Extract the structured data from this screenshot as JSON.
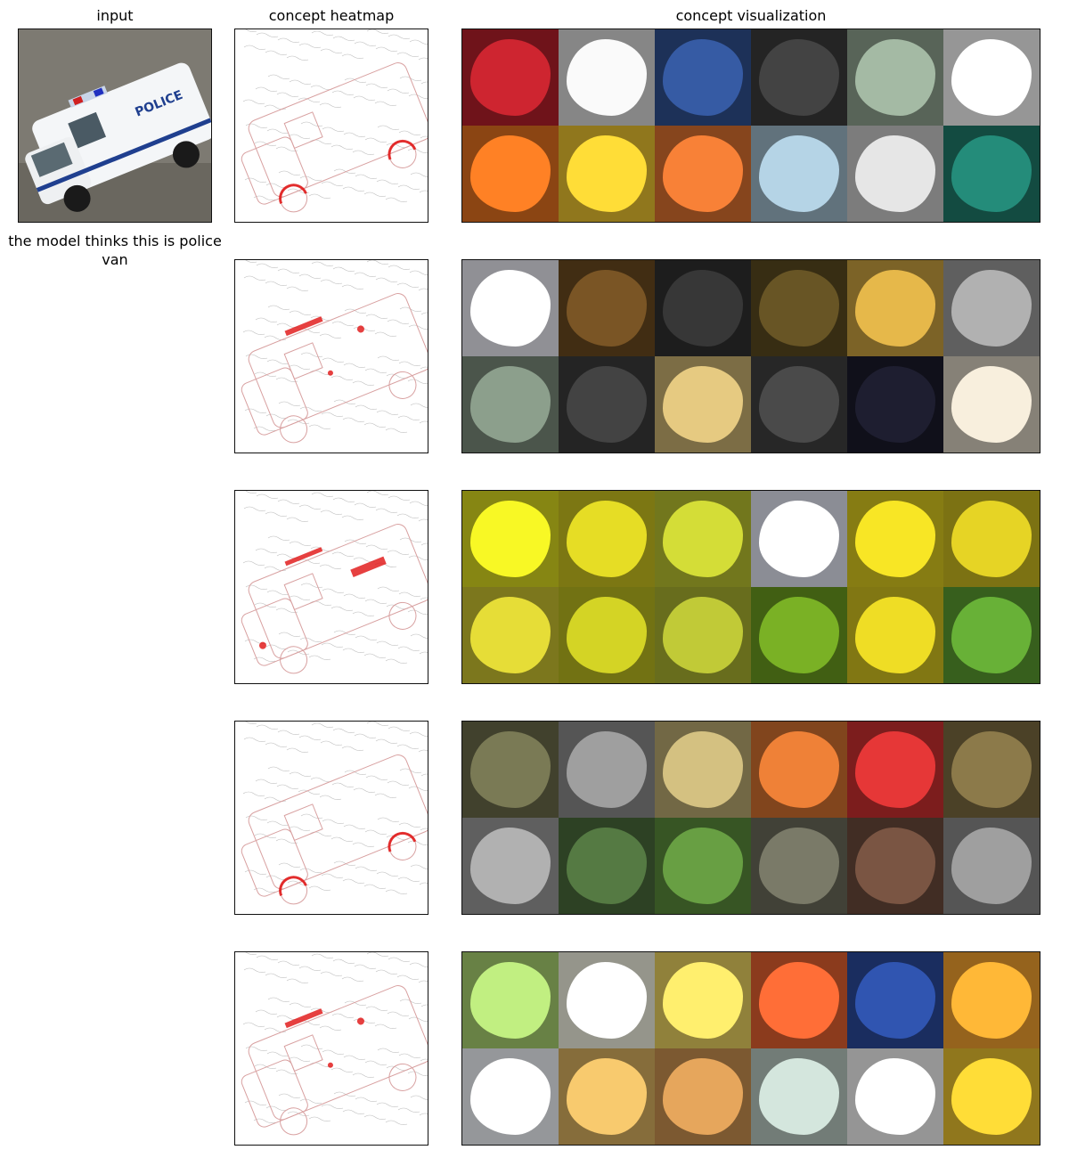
{
  "headers": {
    "input": "input",
    "heatmap": "concept heatmap",
    "visualization": "concept visualization"
  },
  "caption": "the model thinks this is police van",
  "input_image": {
    "text": "POLICE",
    "van_color": "#f4f6f8",
    "stripe_color": "#1f3f8f"
  },
  "rows": [
    {
      "heat_focus": "wheels",
      "tiles": [
        "#b3202a",
        "#d9d9d9",
        "#2f4f8f",
        "#3a3a3a",
        "#8fa28f",
        "#f2f2f2",
        "#e07020",
        "#e8c030",
        "#d87030",
        "#9db8c8",
        "#c8c8c8",
        "#1f7a6a"
      ]
    },
    {
      "heat_focus": "roof-light",
      "tiles": [
        "#e8e8f0",
        "#6a4a20",
        "#303030",
        "#5a4a20",
        "#c8a040",
        "#9a9a9a",
        "#7a8a7a",
        "#3a3a3a",
        "#c8b070",
        "#404040",
        "#1a1a2a",
        "#d8d0c0"
      ]
    },
    {
      "heat_focus": "body-text",
      "tiles": [
        "#d8d820",
        "#c8c020",
        "#b8c030",
        "#e0e4f0",
        "#d8c820",
        "#c8b820",
        "#c8c030",
        "#b8b820",
        "#a8b030",
        "#6a9a20",
        "#d0c020",
        "#5a9a30"
      ]
    },
    {
      "heat_focus": "wheels",
      "tiles": [
        "#6a6a4a",
        "#8a8a8a",
        "#b8a870",
        "#d07030",
        "#c83030",
        "#7a6a40",
        "#9a9a9a",
        "#4a6a3a",
        "#5a8a3a",
        "#6a6a5a",
        "#6a4a3a",
        "#8a8a8a"
      ]
    },
    {
      "heat_focus": "roof-light",
      "tiles": [
        "#a8d070",
        "#f0f0e0",
        "#e8d060",
        "#e06030",
        "#2a4a9a",
        "#f0a030",
        "#f0f4f8",
        "#d8b060",
        "#c89050",
        "#b8c8c0",
        "#f0f0f0",
        "#e8c030"
      ]
    }
  ]
}
